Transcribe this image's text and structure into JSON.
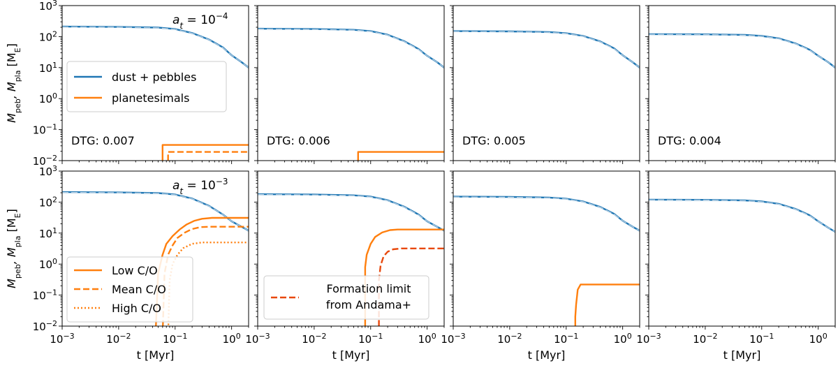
{
  "colors": {
    "pebbles": "#1f77b4",
    "planetesimals": "#ff7f0e",
    "formation_limit": "#e8480c",
    "frame": "#000000",
    "legend_border": "#cccccc"
  },
  "axes": {
    "x_scale": "log",
    "y_scale": "log",
    "xlim": [
      0.001,
      2
    ],
    "ylim": [
      0.01,
      1000
    ],
    "xlabel": "t [Myr]",
    "ylabel_main": "M",
    "ylabel_sub1": "peb",
    "ylabel_sep": ", M",
    "ylabel_sub2": "pla",
    "ylabel_unit": " [M",
    "ylabel_unit_sub": "E",
    "ylabel_close": "]",
    "x_ticks": [
      0.001,
      0.01,
      0.1,
      1
    ],
    "x_tick_base": "10",
    "x_tick_exps": [
      "−3",
      "−2",
      "−1",
      "0"
    ],
    "y_ticks": [
      0.01,
      0.1,
      1,
      10,
      100,
      1000
    ],
    "y_tick_base": "10",
    "y_tick_exps": [
      "−2",
      "−1",
      "0",
      "1",
      "2",
      "3"
    ]
  },
  "rows": [
    {
      "annotation_base": "a",
      "annotation_sub": "t",
      "annotation_eq": " = 10",
      "annotation_exp": "−4",
      "legend": {
        "location": "center-left",
        "entries": [
          {
            "label": "dust + pebbles",
            "style": "solid",
            "color_key": "pebbles"
          },
          {
            "label": "planetesimals",
            "style": "solid",
            "color_key": "planetesimals"
          }
        ]
      }
    },
    {
      "annotation_base": "a",
      "annotation_sub": "t",
      "annotation_eq": " = 10",
      "annotation_exp": "−3",
      "legend": {
        "location": "lower-left",
        "entries": [
          {
            "label": "Low C/O",
            "style": "solid",
            "color_key": "planetesimals"
          },
          {
            "label": "Mean C/O",
            "style": "dashed",
            "color_key": "planetesimals"
          },
          {
            "label": "High C/O",
            "style": "dotted",
            "color_key": "planetesimals"
          }
        ]
      },
      "legend2": {
        "location": "lower-center",
        "panel": 1,
        "label_line1": "Formation limit",
        "label_line2": "from Andama+",
        "style": "dashed",
        "color_key": "formation_limit"
      }
    }
  ],
  "columns": [
    {
      "dtg_label": "DTG: 0.007"
    },
    {
      "dtg_label": "DTG: 0.006"
    },
    {
      "dtg_label": "DTG: 0.005"
    },
    {
      "dtg_label": "DTG: 0.004"
    }
  ],
  "chart_data": {
    "type": "line",
    "layout": "2x4 grid",
    "panels": [
      {
        "row": 0,
        "col": 0,
        "series": [
          {
            "name": "dust + pebbles",
            "color_key": "pebbles",
            "style": "solid",
            "x": [
              0.001,
              0.01,
              0.05,
              0.1,
              0.2,
              0.4,
              0.7,
              1.0,
              1.5,
              2.0
            ],
            "y": [
              210,
              205,
              195,
              175,
              130,
              80,
              45,
              25,
              15,
              10
            ]
          },
          {
            "name": "",
            "color_key": "pebbles",
            "style": "dashed",
            "x": [
              0.001,
              0.01,
              0.05,
              0.1,
              0.2,
              0.4,
              0.7,
              1.0,
              1.5,
              2.0
            ],
            "y": [
              206,
              201,
              191,
              172,
              128,
              79,
              44,
              25,
              15,
              10
            ]
          },
          {
            "name": "",
            "color_key": "planetesimals",
            "style": "solid",
            "x": [
              0.06,
              0.06,
              2.0
            ],
            "y": [
              0.005,
              0.032,
              0.032
            ]
          },
          {
            "name": "",
            "color_key": "planetesimals",
            "style": "dashed",
            "x": [
              0.075,
              0.075,
              2.0
            ],
            "y": [
              0.005,
              0.019,
              0.019
            ]
          }
        ]
      },
      {
        "row": 0,
        "col": 1,
        "series": [
          {
            "name": "",
            "color_key": "pebbles",
            "style": "solid",
            "x": [
              0.001,
              0.01,
              0.05,
              0.1,
              0.2,
              0.4,
              0.7,
              1.0,
              1.5,
              2.0
            ],
            "y": [
              180,
              175,
              165,
              150,
              115,
              70,
              40,
              24,
              15,
              10
            ]
          },
          {
            "name": "",
            "color_key": "pebbles",
            "style": "dashed",
            "x": [
              0.001,
              0.01,
              0.05,
              0.1,
              0.2,
              0.4,
              0.7,
              1.0,
              1.5,
              2.0
            ],
            "y": [
              176,
              171,
              162,
              147,
              113,
              69,
              39,
              24,
              15,
              10
            ]
          },
          {
            "name": "",
            "color_key": "planetesimals",
            "style": "solid",
            "x": [
              0.06,
              0.06,
              2.0
            ],
            "y": [
              0.005,
              0.019,
              0.019
            ]
          }
        ]
      },
      {
        "row": 0,
        "col": 2,
        "series": [
          {
            "name": "",
            "color_key": "pebbles",
            "style": "solid",
            "x": [
              0.001,
              0.01,
              0.05,
              0.1,
              0.2,
              0.4,
              0.7,
              1.0,
              1.5,
              2.0
            ],
            "y": [
              150,
              147,
              140,
              128,
              105,
              70,
              42,
              25,
              15,
              10
            ]
          },
          {
            "name": "",
            "color_key": "pebbles",
            "style": "dashed",
            "x": [
              0.001,
              0.01,
              0.05,
              0.1,
              0.2,
              0.4,
              0.7,
              1.0,
              1.5,
              2.0
            ],
            "y": [
              147,
              144,
              137,
              126,
              103,
              69,
              41,
              25,
              15,
              10
            ]
          }
        ]
      },
      {
        "row": 0,
        "col": 3,
        "series": [
          {
            "name": "",
            "color_key": "pebbles",
            "style": "solid",
            "x": [
              0.001,
              0.01,
              0.05,
              0.1,
              0.2,
              0.4,
              0.7,
              1.0,
              1.5,
              2.0
            ],
            "y": [
              120,
              118,
              113,
              105,
              88,
              60,
              38,
              24,
              15,
              10
            ]
          },
          {
            "name": "",
            "color_key": "pebbles",
            "style": "dashed",
            "x": [
              0.001,
              0.01,
              0.05,
              0.1,
              0.2,
              0.4,
              0.7,
              1.0,
              1.5,
              2.0
            ],
            "y": [
              118,
              116,
              111,
              103,
              86,
              59,
              37,
              24,
              15,
              10
            ]
          }
        ]
      },
      {
        "row": 1,
        "col": 0,
        "series": [
          {
            "name": "",
            "color_key": "pebbles",
            "style": "solid",
            "x": [
              0.001,
              0.01,
              0.05,
              0.1,
              0.2,
              0.4,
              0.7,
              1.0,
              1.5,
              2.0
            ],
            "y": [
              210,
              205,
              195,
              175,
              130,
              75,
              40,
              24,
              16,
              12
            ]
          },
          {
            "name": "",
            "color_key": "pebbles",
            "style": "dashed",
            "x": [
              0.001,
              0.01,
              0.05,
              0.1,
              0.2,
              0.4,
              0.7,
              1.0,
              1.5,
              2.0
            ],
            "y": [
              206,
              201,
              191,
              172,
              128,
              74,
              40,
              24,
              16,
              12
            ]
          },
          {
            "name": "Low C/O",
            "color_key": "planetesimals",
            "style": "solid",
            "x": [
              0.045,
              0.05,
              0.06,
              0.07,
              0.09,
              0.12,
              0.16,
              0.22,
              0.3,
              0.45,
              2.0
            ],
            "y": [
              0.005,
              0.5,
              2,
              4.5,
              8,
              13,
              19,
              25,
              29,
              31,
              31
            ]
          },
          {
            "name": "Mean C/O",
            "color_key": "planetesimals",
            "style": "dashed",
            "x": [
              0.06,
              0.065,
              0.075,
              0.09,
              0.11,
              0.15,
              0.2,
              0.28,
              0.4,
              2.0
            ],
            "y": [
              0.005,
              0.5,
              2,
              4,
              7,
              10.5,
              13.5,
              15.5,
              16,
              16
            ]
          },
          {
            "name": "High C/O",
            "color_key": "planetesimals",
            "style": "dotted",
            "x": [
              0.075,
              0.08,
              0.09,
              0.11,
              0.14,
              0.2,
              0.3,
              2.0
            ],
            "y": [
              0.005,
              0.3,
              1,
              2,
              3.3,
              4.5,
              5,
              5
            ]
          }
        ]
      },
      {
        "row": 1,
        "col": 1,
        "series": [
          {
            "name": "",
            "color_key": "pebbles",
            "style": "solid",
            "x": [
              0.001,
              0.01,
              0.05,
              0.1,
              0.2,
              0.4,
              0.7,
              1.0,
              1.5,
              2.0
            ],
            "y": [
              180,
              175,
              165,
              150,
              115,
              70,
              40,
              24,
              16,
              12
            ]
          },
          {
            "name": "",
            "color_key": "pebbles",
            "style": "dashed",
            "x": [
              0.001,
              0.01,
              0.05,
              0.1,
              0.2,
              0.4,
              0.7,
              1.0,
              1.5,
              2.0
            ],
            "y": [
              176,
              171,
              162,
              147,
              113,
              69,
              39,
              24,
              16,
              12
            ]
          },
          {
            "name": "",
            "color_key": "planetesimals",
            "style": "solid",
            "x": [
              0.08,
              0.08,
              0.085,
              0.1,
              0.12,
              0.16,
              0.22,
              0.3,
              2.0
            ],
            "y": [
              0.005,
              0.8,
              2,
              4.5,
              7.5,
              10.5,
              12.5,
              13,
              13
            ]
          },
          {
            "name": "Formation limit from Andama+",
            "color_key": "formation_limit",
            "style": "dashed",
            "x": [
              0.14,
              0.14,
              0.15,
              0.17,
              0.2,
              0.25,
              0.35,
              2.0
            ],
            "y": [
              0.005,
              0.3,
              0.9,
              1.8,
              2.5,
              3.0,
              3.2,
              3.2
            ]
          }
        ]
      },
      {
        "row": 1,
        "col": 2,
        "series": [
          {
            "name": "",
            "color_key": "pebbles",
            "style": "solid",
            "x": [
              0.001,
              0.01,
              0.05,
              0.1,
              0.2,
              0.4,
              0.7,
              1.0,
              1.5,
              2.0
            ],
            "y": [
              150,
              147,
              140,
              128,
              105,
              70,
              42,
              25,
              16,
              12
            ]
          },
          {
            "name": "",
            "color_key": "pebbles",
            "style": "dashed",
            "x": [
              0.001,
              0.01,
              0.05,
              0.1,
              0.2,
              0.4,
              0.7,
              1.0,
              1.5,
              2.0
            ],
            "y": [
              147,
              144,
              137,
              126,
              103,
              69,
              41,
              25,
              16,
              12
            ]
          },
          {
            "name": "",
            "color_key": "planetesimals",
            "style": "solid",
            "x": [
              0.145,
              0.145,
              0.15,
              0.16,
              0.18,
              2.0
            ],
            "y": [
              0.005,
              0.02,
              0.05,
              0.15,
              0.22,
              0.22
            ]
          }
        ]
      },
      {
        "row": 1,
        "col": 3,
        "series": [
          {
            "name": "",
            "color_key": "pebbles",
            "style": "solid",
            "x": [
              0.001,
              0.01,
              0.05,
              0.1,
              0.2,
              0.4,
              0.7,
              1.0,
              1.5,
              2.0
            ],
            "y": [
              120,
              118,
              113,
              105,
              88,
              60,
              38,
              24,
              15,
              11
            ]
          },
          {
            "name": "",
            "color_key": "pebbles",
            "style": "dashed",
            "x": [
              0.001,
              0.01,
              0.05,
              0.1,
              0.2,
              0.4,
              0.7,
              1.0,
              1.5,
              2.0
            ],
            "y": [
              118,
              116,
              111,
              103,
              86,
              59,
              37,
              24,
              15,
              11
            ]
          }
        ]
      }
    ]
  }
}
